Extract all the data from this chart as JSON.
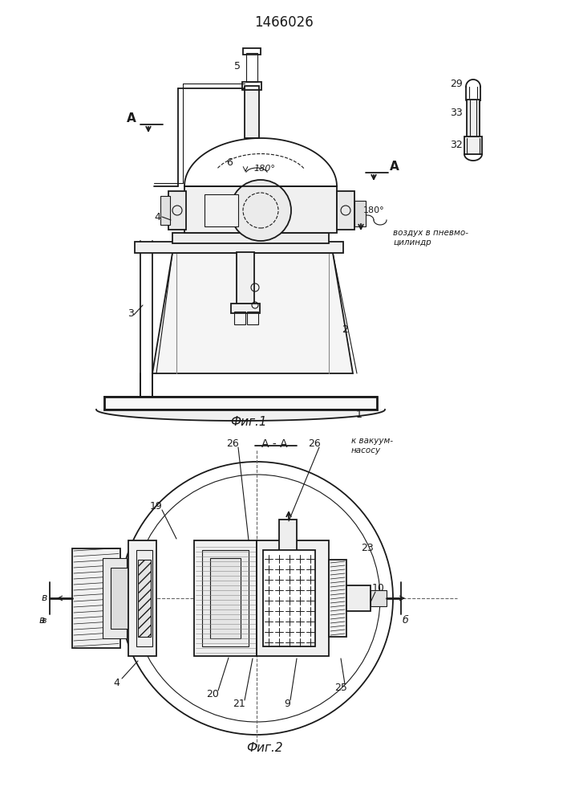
{
  "title": "1466026",
  "fig1_caption": "Фиг.1",
  "fig2_caption": "Фиг.2",
  "fig2_section_label": "А - А",
  "bg_color": "#ffffff",
  "line_color": "#1a1a1a",
  "title_fontsize": 12,
  "caption_fontsize": 11,
  "label_fontsize": 9
}
